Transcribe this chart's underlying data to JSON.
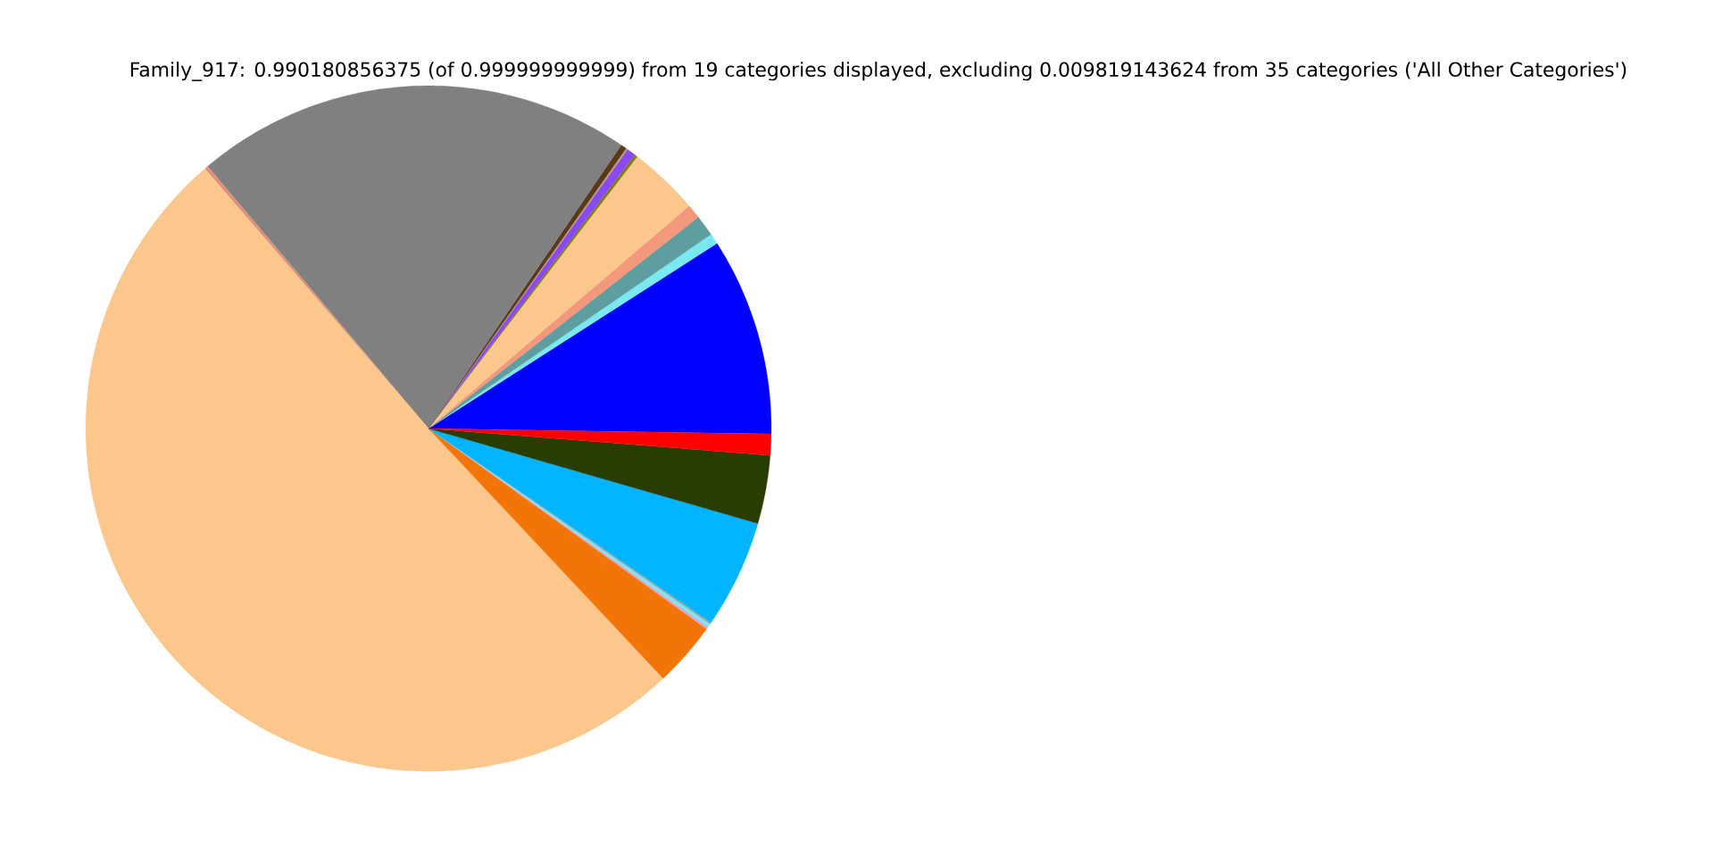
{
  "chart_data": {
    "type": "pie",
    "title": "Family_917: 0.990180856375 (of 0.999999999999) from 19 categories displayed, excluding 0.009819143624 from 35 categories ('All Other Categories')",
    "categories": [
      null,
      null,
      null,
      null,
      null,
      null,
      null,
      null,
      null,
      null,
      null,
      null,
      null,
      null,
      null,
      null,
      null,
      null,
      null
    ],
    "values": [
      9.33,
      0.5,
      1.0,
      0.67,
      3.33,
      0.14,
      0.42,
      0.08,
      0.28,
      20.64,
      0.17,
      50.69,
      3.06,
      0.11,
      0.17,
      0.08,
      5.11,
      3.22,
      1.0
    ],
    "colors": [
      "#0000ff",
      "#7ae8f0",
      "#5f9ea0",
      "#f4987c",
      "#fcc78c",
      "#808000",
      "#8b4af8",
      "#c0a070",
      "#5a3a1a",
      "#808080",
      "#e0907a",
      "#fcc78c",
      "#f27507",
      "#e8a0c0",
      "#7ae8f0",
      "#a0a0a0",
      "#00b4ff",
      "#2a3d00",
      "#ff0000"
    ]
  }
}
